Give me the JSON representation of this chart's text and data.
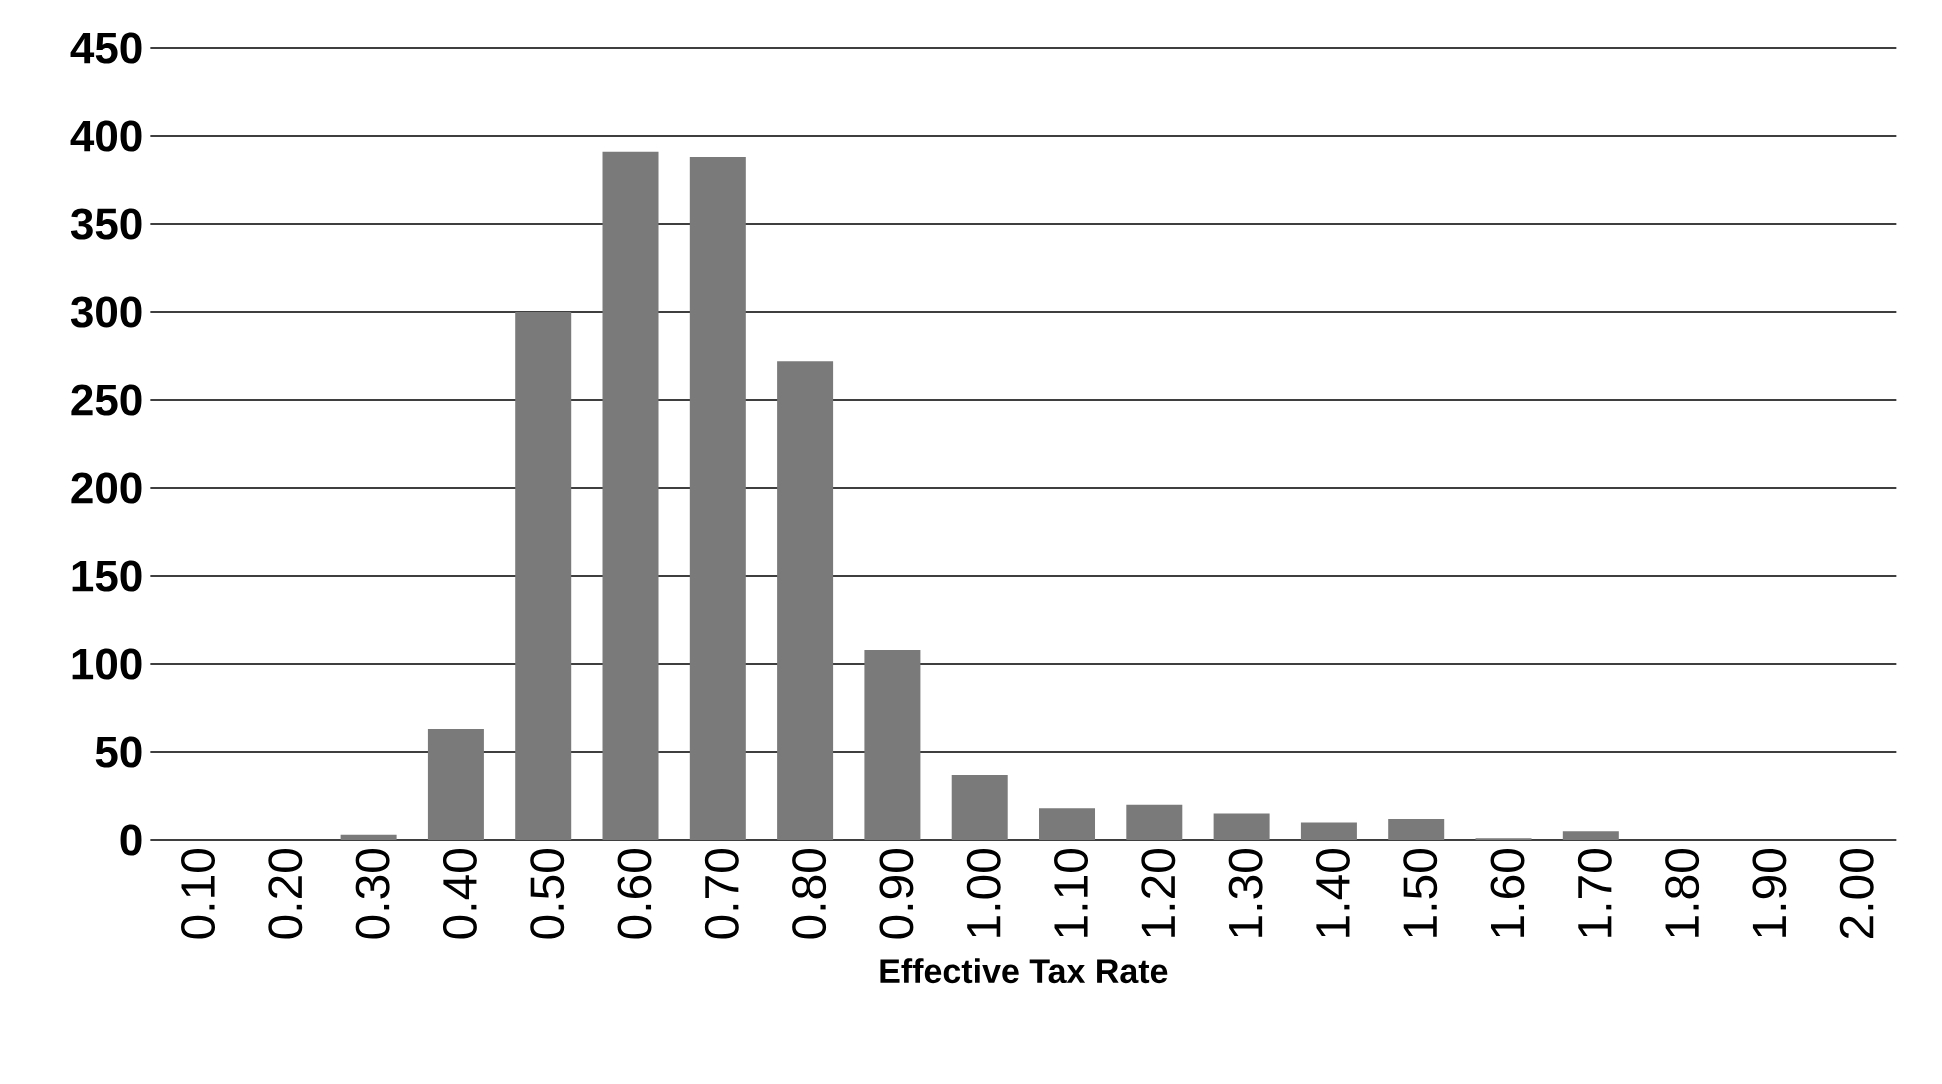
{
  "chart_data": {
    "type": "bar",
    "xlabel": "Effective Tax Rate",
    "categories": [
      "0.10",
      "0.20",
      "0.30",
      "0.40",
      "0.50",
      "0.60",
      "0.70",
      "0.80",
      "0.90",
      "1.00",
      "1.10",
      "1.20",
      "1.30",
      "1.40",
      "1.50",
      "1.60",
      "1.70",
      "1.80",
      "1.90",
      "2.00"
    ],
    "values": [
      0,
      0,
      3,
      63,
      300,
      391,
      388,
      272,
      108,
      37,
      18,
      20,
      15,
      10,
      12,
      1,
      5,
      0,
      0,
      0
    ],
    "color": "#7a7a7a",
    "ylim": [
      0,
      450
    ],
    "yticks": [
      0,
      50,
      100,
      150,
      200,
      250,
      300,
      350,
      400,
      450
    ],
    "grid": "y"
  }
}
